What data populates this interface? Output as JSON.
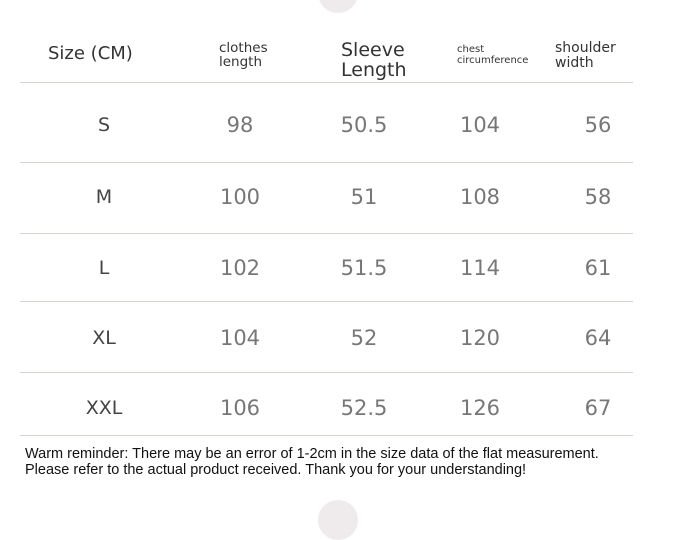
{
  "table": {
    "headers": [
      "Size (CM)",
      "clothes length",
      "Sleeve Length",
      "chest circumference",
      "shoulder width"
    ],
    "rows": [
      [
        "S",
        "98",
        "50.5",
        "104",
        "56"
      ],
      [
        "M",
        "100",
        "51",
        "108",
        "58"
      ],
      [
        "L",
        "102",
        "51.5",
        "114",
        "61"
      ],
      [
        "XL",
        "104",
        "52",
        "120",
        "64"
      ],
      [
        "XXL",
        "106",
        "52.5",
        "126",
        "67"
      ]
    ]
  },
  "note": {
    "line1": "Warm reminder: There may be an error of 1-2cm in the size data of the flat measurement.",
    "line2": "Please refer to the actual product received. Thank you for your understanding!"
  }
}
